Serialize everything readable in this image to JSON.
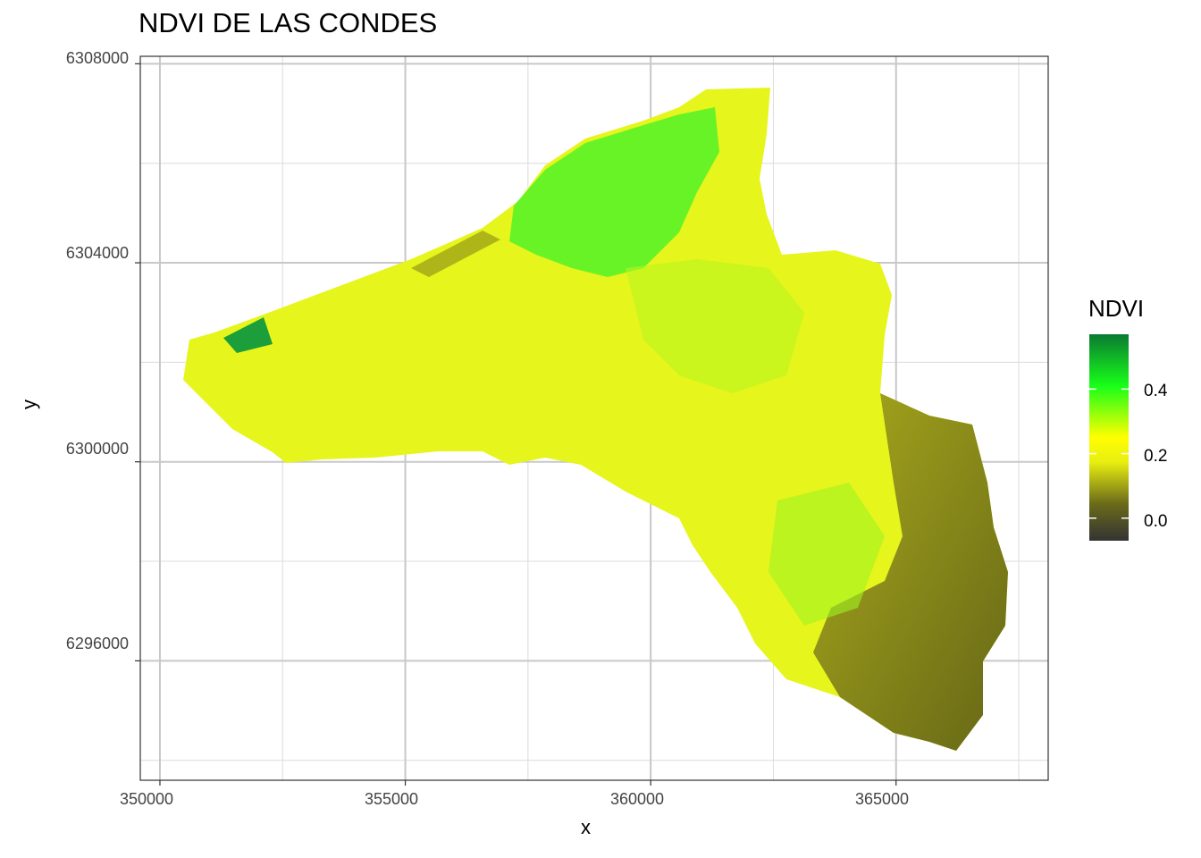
{
  "chart_data": {
    "type": "heatmap",
    "title": "NDVI DE LAS CONDES",
    "xlabel": "x",
    "ylabel": "y",
    "x_ticks": [
      "350000",
      "355000",
      "360000",
      "365000"
    ],
    "y_ticks": [
      "6308000",
      "6304000",
      "6300000",
      "6296000"
    ],
    "xlim": [
      349600,
      368100
    ],
    "ylim": [
      6293600,
      6308150
    ],
    "grid": true,
    "legend": {
      "title": "NDVI",
      "position": "right",
      "labels": [
        "0.4",
        "0.2",
        "0.0"
      ],
      "range": [
        -0.07,
        0.57
      ],
      "colors": [
        "#333333",
        "#6b6b1a",
        "#e8ee10",
        "#ffff00",
        "#18ff18",
        "#0a7a32"
      ]
    }
  }
}
